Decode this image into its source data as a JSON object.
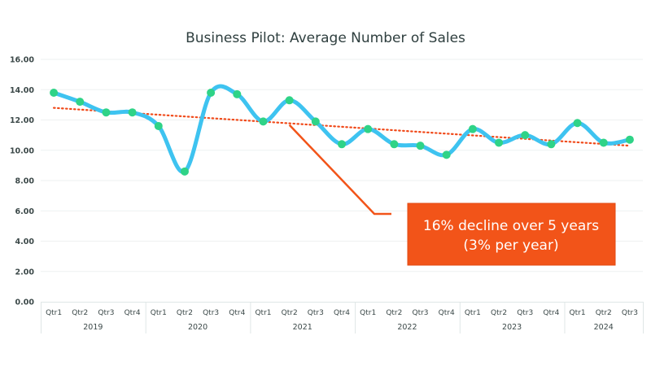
{
  "chart_data": {
    "type": "line",
    "title": "Business Pilot: Average Number of Sales",
    "xlabel": "",
    "ylabel": "",
    "ylim": [
      0,
      16
    ],
    "yticks": [
      "0.00",
      "2.00",
      "4.00",
      "6.00",
      "8.00",
      "10.00",
      "12.00",
      "14.00",
      "16.00"
    ],
    "ytick_values": [
      0,
      2,
      4,
      6,
      8,
      10,
      12,
      14,
      16
    ],
    "grid": true,
    "categories": [
      "Qtr1",
      "Qtr2",
      "Qtr3",
      "Qtr4",
      "Qtr1",
      "Qtr2",
      "Qtr3",
      "Qtr4",
      "Qtr1",
      "Qtr2",
      "Qtr3",
      "Qtr4",
      "Qtr1",
      "Qtr2",
      "Qtr3",
      "Qtr4",
      "Qtr1",
      "Qtr2",
      "Qtr3",
      "Qtr4",
      "Qtr1",
      "Qtr2",
      "Qtr3"
    ],
    "groups": [
      {
        "label": "2019",
        "count": 4
      },
      {
        "label": "2020",
        "count": 4
      },
      {
        "label": "2021",
        "count": 4
      },
      {
        "label": "2022",
        "count": 4
      },
      {
        "label": "2023",
        "count": 4
      },
      {
        "label": "2024",
        "count": 3
      }
    ],
    "series": [
      {
        "name": "Average Number of Sales",
        "line_color": "#3ec3f0",
        "marker_color": "#2fd387",
        "smooth": true,
        "values": [
          13.8,
          13.2,
          12.5,
          12.5,
          11.6,
          8.6,
          13.8,
          13.7,
          11.9,
          13.3,
          11.9,
          10.4,
          11.4,
          10.4,
          10.3,
          9.7,
          11.4,
          10.5,
          11.0,
          10.4,
          11.8,
          10.5,
          10.7
        ]
      }
    ],
    "trendline": {
      "name": "Linear trend",
      "color": "#f04a1a",
      "style": "dotted",
      "start": 12.8,
      "end": 10.3
    },
    "annotation": {
      "line1": "16% decline over 5 years",
      "line2": "(3% per year)",
      "color": "#f25419",
      "points_to_category_index": 9,
      "leader_end_value": 5.8
    }
  }
}
